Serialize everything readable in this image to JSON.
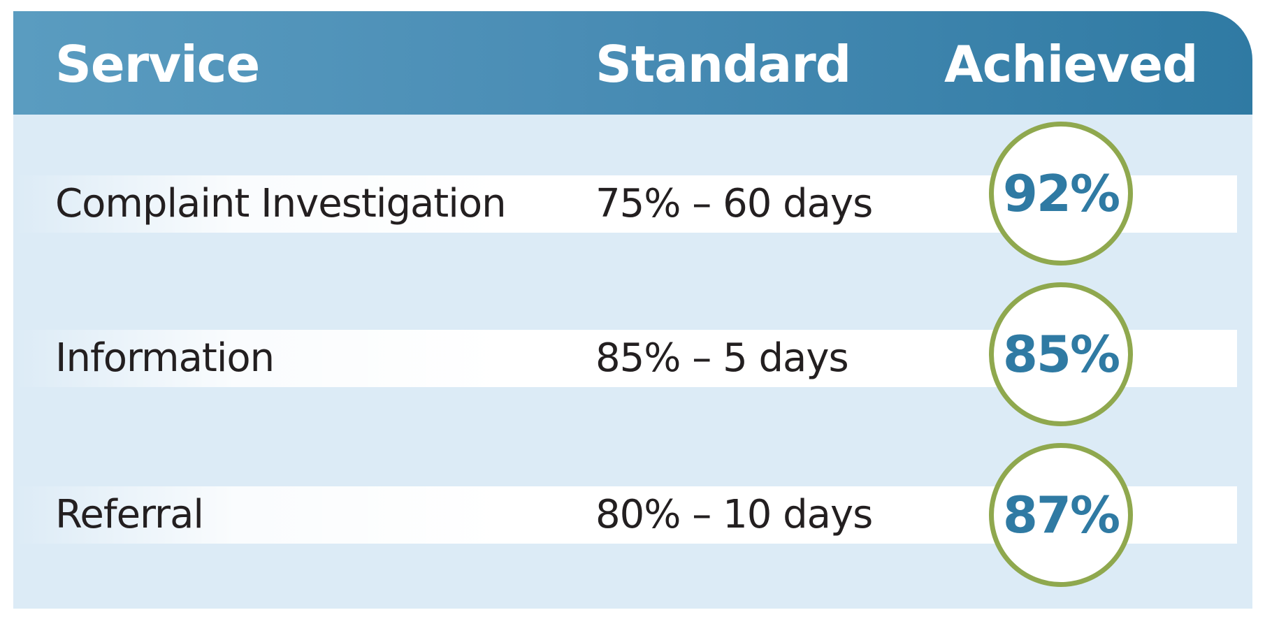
{
  "chart_data": {
    "type": "table",
    "columns": [
      "Service",
      "Standard",
      "Achieved"
    ],
    "rows": [
      {
        "service": "Complaint Investigation",
        "standard": "75% – 60 days",
        "achieved": "92%"
      },
      {
        "service": "Information",
        "standard": "85% – 5 days",
        "achieved": "85%"
      },
      {
        "service": "Referral",
        "standard": "80% – 10 days",
        "achieved": "87%"
      }
    ]
  },
  "colors": {
    "header": "#4a8db5",
    "body": "#dcebf6",
    "accent_ring": "#8fa84e",
    "achieved_text": "#2f7aa3"
  }
}
